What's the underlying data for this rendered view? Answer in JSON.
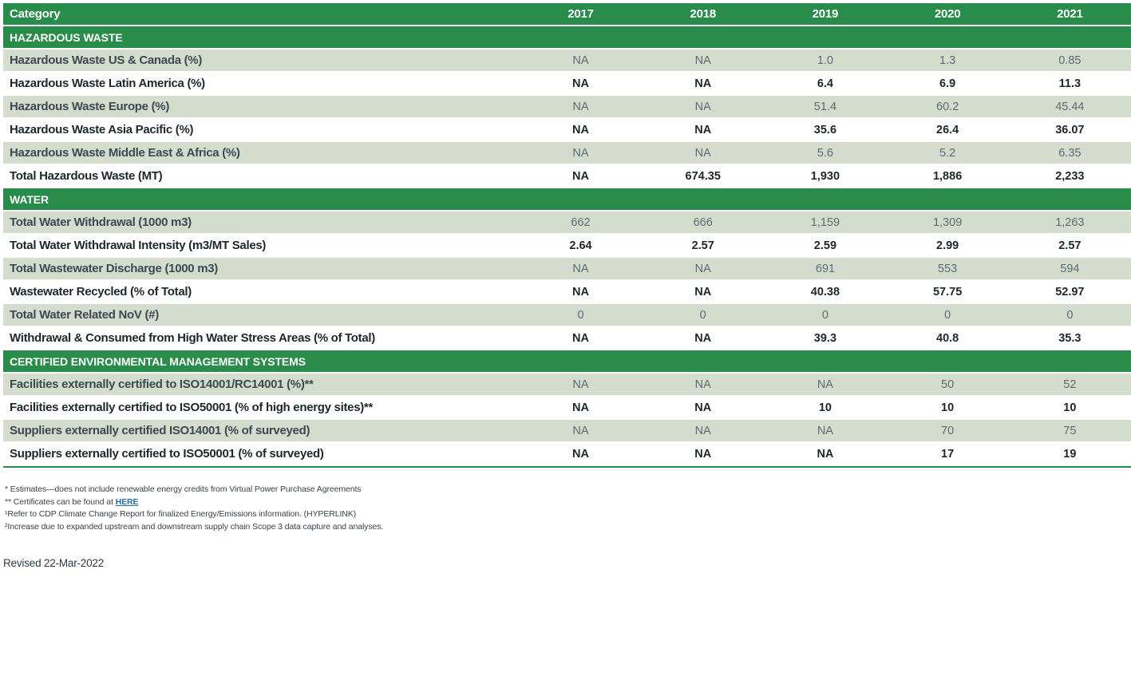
{
  "table": {
    "header": {
      "category_label": "Category",
      "years": [
        "2017",
        "2018",
        "2019",
        "2020",
        "2021"
      ]
    },
    "sections": [
      {
        "title": "HAZARDOUS WASTE",
        "rows": [
          {
            "label": "Hazardous Waste US & Canada (%)",
            "values": [
              "NA",
              "NA",
              "1.0",
              "1.3",
              "0.85"
            ]
          },
          {
            "label": "Hazardous Waste Latin America (%)",
            "values": [
              "NA",
              "NA",
              "6.4",
              "6.9",
              "11.3"
            ]
          },
          {
            "label": "Hazardous Waste Europe (%)",
            "values": [
              "NA",
              "NA",
              "51.4",
              "60.2",
              "45.44"
            ]
          },
          {
            "label": "Hazardous Waste Asia Pacific (%)",
            "values": [
              "NA",
              "NA",
              "35.6",
              "26.4",
              "36.07"
            ]
          },
          {
            "label": "Hazardous Waste Middle East & Africa (%)",
            "values": [
              "NA",
              "NA",
              "5.6",
              "5.2",
              "6.35"
            ]
          },
          {
            "label": "Total Hazardous Waste (MT)",
            "values": [
              "NA",
              "674.35",
              "1,930",
              "1,886",
              "2,233"
            ]
          }
        ]
      },
      {
        "title": "WATER",
        "rows": [
          {
            "label": "Total Water Withdrawal (1000 m3)",
            "values": [
              "662",
              "666",
              "1,159",
              "1,309",
              "1,263"
            ]
          },
          {
            "label": "Total Water Withdrawal Intensity (m3/MT Sales)",
            "values": [
              "2.64",
              "2.57",
              "2.59",
              "2.99",
              "2.57"
            ]
          },
          {
            "label": "Total Wastewater Discharge (1000 m3)",
            "values": [
              "NA",
              "NA",
              "691",
              "553",
              "594"
            ]
          },
          {
            "label": "Wastewater Recycled (% of Total)",
            "values": [
              "NA",
              "NA",
              "40.38",
              "57.75",
              "52.97"
            ]
          },
          {
            "label": "Total Water Related NoV (#)",
            "values": [
              "0",
              "0",
              "0",
              "0",
              "0"
            ]
          },
          {
            "label": "Withdrawal & Consumed from High Water Stress Areas (% of Total)",
            "values": [
              "NA",
              "NA",
              "39.3",
              "40.8",
              "35.3"
            ]
          }
        ]
      },
      {
        "title": "CERTIFIED ENVIRONMENTAL MANAGEMENT SYSTEMS",
        "rows": [
          {
            "label": "Facilities externally certified to ISO14001/RC14001 (%)**",
            "values": [
              "NA",
              "NA",
              "NA",
              "50",
              "52"
            ]
          },
          {
            "label": "Facilities externally certified to ISO50001 (% of high energy sites)**",
            "values": [
              "NA",
              "NA",
              "10",
              "10",
              "10"
            ]
          },
          {
            "label": "Suppliers externally certified ISO14001 (% of surveyed)",
            "values": [
              "NA",
              "NA",
              "NA",
              "70",
              "75"
            ]
          },
          {
            "label": "Suppliers externally certified to ISO50001 (% of surveyed)",
            "values": [
              "NA",
              "NA",
              "NA",
              "17",
              "19"
            ]
          }
        ]
      }
    ]
  },
  "footnotes": {
    "note_estimates": "* Estimates—does not include renewable energy credits from Virtual Power Purchase Agreements",
    "note_certificates_prefix": "** Certificates can be found at ",
    "note_certificates_link": "HERE",
    "note_cdp": "¹Refer to CDP Climate Change Report for finalized Energy/Emissions information. (HYPERLINK)",
    "note_scope3": "²Increase due to expanded upstream and downstream supply chain Scope 3 data capture and analyses.",
    "revised": "Revised 22-Mar-2022"
  },
  "colors": {
    "header_green": "#2a8c4a",
    "row_shade_green": "#d4dccd",
    "link_blue": "#2e6da4",
    "dark_text": "#1e272c",
    "muted_text": "#5d6a71"
  }
}
